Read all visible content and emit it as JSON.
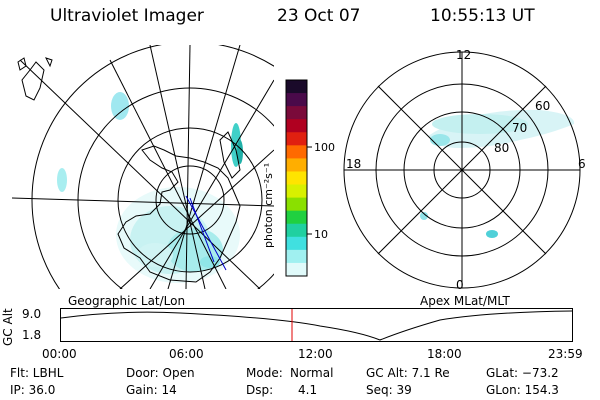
{
  "header": {
    "instrument": "Ultraviolet Imager",
    "date": "23 Oct 07",
    "time": "10:55:13 UT"
  },
  "geo_panel": {
    "label": "Geographic Lat/Lon"
  },
  "colorbar": {
    "unit_label": "photon cm⁻²s⁻¹",
    "ticks": [
      "100",
      "10"
    ],
    "colors": [
      "#1a0a2a",
      "#4a0a4a",
      "#7a0a3a",
      "#b00020",
      "#e02010",
      "#ff6a00",
      "#ffae00",
      "#ffe400",
      "#d8f000",
      "#8ae000",
      "#20d040",
      "#20d0a0",
      "#40e0e0",
      "#a0f0f0",
      "#e0fafa"
    ]
  },
  "polar_panel": {
    "label": "Apex MLat/MLT",
    "mlt_labels": {
      "top": "12",
      "bottom": "0",
      "left": "18",
      "right": "6"
    },
    "lat_labels": [
      "60",
      "70",
      "80"
    ]
  },
  "altitude_plot": {
    "axis_label": "GC Alt",
    "y_ticks": [
      "9.0",
      "1.8"
    ],
    "x_ticks": [
      "00:00",
      "06:00",
      "12:00",
      "18:00",
      "23:59"
    ],
    "marker_color": "#e00000"
  },
  "info": {
    "filter": "Flt: LBHL",
    "ip": "IP: 36.0",
    "door": "Door: Open",
    "gain": "Gain: 14",
    "mode_label": "Mode:",
    "mode_value": "Normal",
    "dsp_label": "Dsp:",
    "dsp_value": "4.1",
    "gc_alt": "GC Alt: 7.1 Re",
    "seq": "Seq: 39",
    "glat": "GLat: −73.2",
    "glon": "GLon: 154.3"
  }
}
